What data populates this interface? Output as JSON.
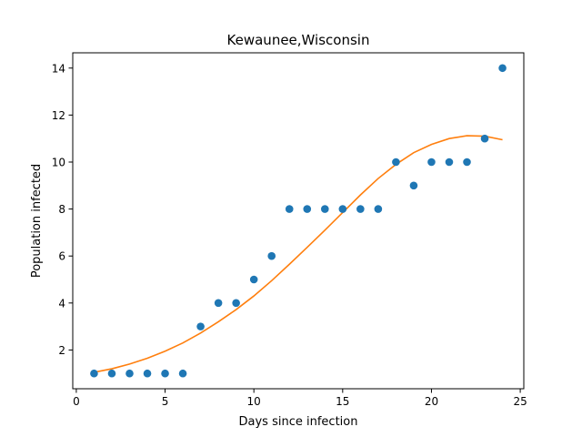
{
  "chart_data": {
    "type": "scatter",
    "title": "Kewaunee,Wisconsin",
    "xlabel": "Days since infection",
    "ylabel": "Population infected",
    "xlim": [
      -0.2,
      25.2
    ],
    "ylim": [
      0.35,
      14.65
    ],
    "xticks": [
      0,
      5,
      10,
      15,
      20,
      25
    ],
    "yticks": [
      2,
      4,
      6,
      8,
      10,
      12,
      14
    ],
    "grid": false,
    "colors": {
      "scatter": "#1f77b4",
      "fit": "#ff7f0e"
    },
    "series": [
      {
        "type": "scatter",
        "x": [
          1,
          2,
          3,
          4,
          5,
          6,
          7,
          8,
          9,
          10,
          11,
          12,
          13,
          14,
          15,
          16,
          17,
          18,
          19,
          20,
          21,
          22,
          23,
          24
        ],
        "y": [
          1,
          1,
          1,
          1,
          1,
          1,
          3,
          4,
          4,
          5,
          6,
          8,
          8,
          8,
          8,
          8,
          8,
          10,
          9,
          10,
          10,
          10,
          11,
          14
        ]
      },
      {
        "type": "line",
        "x": [
          1,
          2,
          3,
          4,
          5,
          6,
          7,
          8,
          9,
          10,
          11,
          12,
          13,
          14,
          15,
          16,
          17,
          18,
          19,
          20,
          21,
          22,
          23,
          24
        ],
        "y": [
          1.05,
          1.2,
          1.4,
          1.65,
          1.95,
          2.3,
          2.72,
          3.2,
          3.72,
          4.3,
          4.95,
          5.65,
          6.37,
          7.1,
          7.85,
          8.6,
          9.3,
          9.9,
          10.4,
          10.75,
          11.0,
          11.12,
          11.1,
          10.95
        ]
      }
    ]
  }
}
